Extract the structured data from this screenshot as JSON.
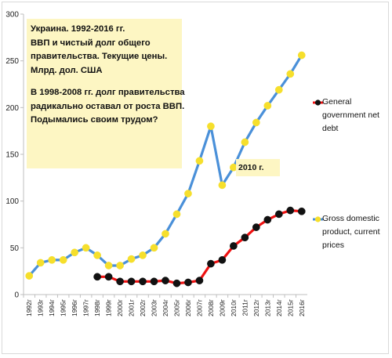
{
  "note": {
    "lines": [
      "Украина. 1992-2016 гг.",
      "ВВП и чистый долг общего",
      "правительства. Текущие цены.",
      "Млрд. дол. США",
      "",
      "В 1998-2008 гг. долг правительства",
      "радикально оставал от роста ВВП.",
      "Подымались своим трудом?"
    ]
  },
  "annotation_2010": "2010 г.",
  "chart_data": {
    "type": "line",
    "x": [
      "1992г",
      "1993г",
      "1994г",
      "1995г",
      "1996г",
      "1997г",
      "1998г",
      "1999г",
      "2000г",
      "2001г",
      "2002г",
      "2003г",
      "2004г",
      "2005г",
      "2006г",
      "2007г",
      "2008г",
      "2009г",
      "2010г",
      "2011г",
      "2012г",
      "2013г",
      "2014г",
      "2015г",
      "2016г"
    ],
    "ylim": [
      0,
      300
    ],
    "yticks": [
      0,
      50,
      100,
      150,
      200,
      250,
      300
    ],
    "grid": false,
    "legend_placement": "right",
    "series": [
      {
        "name": "General government net debt",
        "color": "#ee1111",
        "marker_color": "#111111",
        "values": [
          null,
          null,
          null,
          null,
          null,
          null,
          19,
          19,
          14,
          14,
          14,
          14,
          15,
          12,
          13,
          15,
          33,
          37,
          52,
          61,
          72,
          80,
          86,
          90,
          89
        ]
      },
      {
        "name": "Gross domestic product, current prices",
        "color": "#4a90d9",
        "marker_color": "#f6df2c",
        "values": [
          20,
          34,
          37,
          37,
          45,
          50,
          42,
          31,
          31,
          38,
          42,
          50,
          65,
          86,
          108,
          143,
          180,
          117,
          136,
          163,
          184,
          202,
          219,
          236,
          256
        ]
      }
    ]
  }
}
